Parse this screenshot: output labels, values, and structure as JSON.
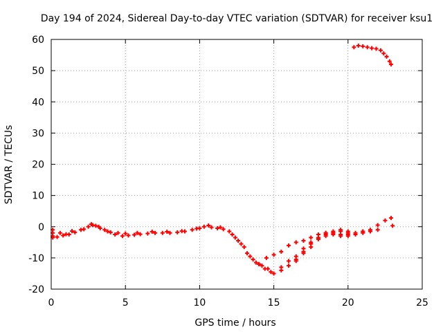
{
  "chart_data": {
    "type": "scatter",
    "title": "Day 194 of 2024, Sidereal Day-to-day VTEC variation (SDTVAR) for receiver ksu1",
    "xlabel": "GPS time / hours",
    "ylabel": "SDTVAR / TECUs",
    "xlim": [
      0,
      25
    ],
    "ylim": [
      -20,
      60
    ],
    "xticks": [
      0,
      5,
      10,
      15,
      20,
      25
    ],
    "yticks": [
      -20,
      -10,
      0,
      10,
      20,
      30,
      40,
      50,
      60
    ],
    "xtick_labels": [
      "0",
      "5",
      "10",
      "15",
      "20",
      "25"
    ],
    "ytick_labels": [
      "-20",
      "-10",
      "0",
      "10",
      "20",
      "30",
      "40",
      "50",
      "60"
    ],
    "grid": true,
    "marker": "+",
    "color": "#ff0000",
    "series": [
      {
        "name": "main-track",
        "x": [
          0.1,
          0.4,
          0.8,
          1.2,
          1.6,
          2.0,
          2.5,
          2.8,
          3.0,
          3.3,
          3.8,
          4.3,
          4.8,
          5.2,
          5.6,
          6.0,
          6.5,
          7.0,
          7.5,
          8.0,
          8.5,
          9.0,
          9.5,
          10.0,
          10.3,
          10.8,
          11.2,
          11.6,
          12.0,
          12.4,
          12.8,
          13.2,
          13.6,
          14.0,
          14.4,
          14.8
        ],
        "y": [
          -3.0,
          -3.3,
          -2.8,
          -2.5,
          -1.8,
          -1.0,
          0.0,
          0.5,
          0.3,
          -0.5,
          -1.5,
          -2.5,
          -3.0,
          -2.8,
          -2.6,
          -2.4,
          -2.2,
          -2.0,
          -2.0,
          -2.0,
          -1.8,
          -1.5,
          -1.0,
          -0.5,
          0.0,
          -0.2,
          -0.5,
          -0.8,
          -1.5,
          -3.5,
          -5.5,
          -8.5,
          -10.5,
          -12.0,
          -13.5,
          -14.5
        ]
      },
      {
        "name": "main-track-spread",
        "x": [
          0.6,
          1.0,
          1.4,
          2.2,
          2.7,
          3.2,
          3.6,
          4.0,
          4.5,
          5.0,
          5.8,
          6.8,
          7.8,
          8.8,
          9.8,
          10.6,
          11.4,
          12.2,
          12.6,
          13.0,
          13.4,
          13.8,
          14.2,
          14.6
        ],
        "y": [
          -2.0,
          -2.4,
          -1.4,
          -0.8,
          0.8,
          0.0,
          -1.0,
          -1.8,
          -2.0,
          -2.2,
          -2.0,
          -1.6,
          -1.6,
          -1.4,
          -0.6,
          0.4,
          -0.2,
          -2.5,
          -4.5,
          -6.5,
          -9.5,
          -11.5,
          -12.5,
          -13.5
        ]
      },
      {
        "name": "recovery-trace-a",
        "x": [
          14.0,
          14.5,
          15.0,
          15.5,
          16.0,
          16.5,
          17.0,
          17.5,
          18.0,
          18.5,
          19.0,
          19.5,
          20.0,
          20.5,
          21.0,
          21.5,
          22.0,
          22.5,
          22.9
        ],
        "y": [
          -12.0,
          -10.0,
          -9.0,
          -8.0,
          -6.0,
          -5.0,
          -4.5,
          -3.5,
          -2.5,
          -2.0,
          -2.0,
          -2.5,
          -2.5,
          -2.0,
          -1.5,
          -1.0,
          0.5,
          2.0,
          2.8
        ]
      },
      {
        "name": "recovery-trace-b",
        "x": [
          15.0,
          15.5,
          16.0,
          16.5,
          17.0,
          17.5,
          18.0,
          18.5,
          19.0,
          19.5,
          20.0,
          20.5,
          21.0,
          21.5,
          22.0
        ],
        "y": [
          -15.0,
          -13.0,
          -11.0,
          -9.5,
          -8.5,
          -6.5,
          -4.0,
          -2.5,
          -2.5,
          -3.0,
          -3.0,
          -2.5,
          -2.0,
          -1.5,
          -1.0
        ]
      },
      {
        "name": "recovery-trace-c",
        "x": [
          15.5,
          16.0,
          16.5,
          17.0,
          17.5,
          18.0,
          18.5,
          19.0,
          19.5,
          20.0,
          20.5,
          21.0,
          21.5
        ],
        "y": [
          -14.0,
          -12.5,
          -11.0,
          -8.0,
          -5.5,
          -4.0,
          -3.0,
          -2.0,
          -1.5,
          -2.0,
          -2.5,
          -1.5,
          -1.5
        ]
      },
      {
        "name": "recovery-trace-d",
        "x": [
          16.5,
          17.0,
          17.5,
          18.0,
          18.5,
          19.0,
          19.5,
          20.0
        ],
        "y": [
          -10.5,
          -7.0,
          -5.0,
          -3.5,
          -2.0,
          -1.5,
          -1.0,
          -1.5
        ]
      },
      {
        "name": "high-arc",
        "x": [
          20.4,
          20.7,
          21.0,
          21.3,
          21.6,
          21.9,
          22.2,
          22.4,
          22.6,
          22.8,
          22.9
        ],
        "y": [
          57.5,
          58.0,
          57.8,
          57.5,
          57.2,
          57.0,
          56.5,
          55.5,
          54.5,
          53.0,
          52.0
        ]
      },
      {
        "name": "isolated-points",
        "x": [
          0.1,
          0.1,
          0.1,
          23.0
        ],
        "y": [
          -1.0,
          -2.0,
          -3.5,
          0.3
        ]
      }
    ]
  }
}
